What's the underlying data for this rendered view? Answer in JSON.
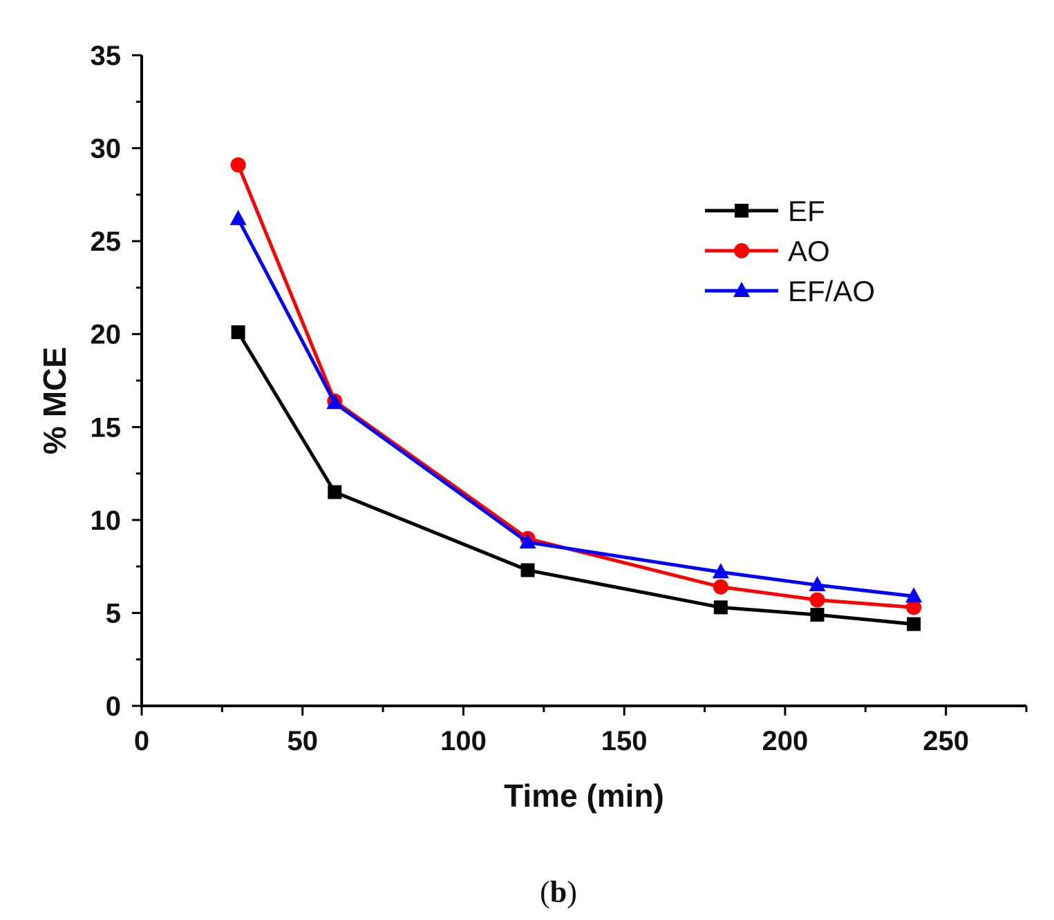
{
  "chart_data": {
    "type": "line",
    "title": "",
    "xlabel": "Time (min)",
    "ylabel": "% MCE",
    "xlim": [
      0,
      275
    ],
    "ylim": [
      0,
      35
    ],
    "x_ticks": [
      0,
      50,
      100,
      150,
      200,
      250
    ],
    "y_ticks": [
      0,
      5,
      10,
      15,
      20,
      25,
      30,
      35
    ],
    "x": [
      30,
      60,
      120,
      180,
      210,
      240
    ],
    "series": [
      {
        "name": "EF",
        "color": "#000000",
        "marker": "square",
        "values": [
          20.1,
          11.5,
          7.3,
          5.3,
          4.9,
          4.4
        ]
      },
      {
        "name": "AO",
        "color": "#ff0000",
        "marker": "circle",
        "values": [
          29.1,
          16.4,
          9.0,
          6.4,
          5.7,
          5.3
        ]
      },
      {
        "name": "EF/AO",
        "color": "#0000ff",
        "marker": "triangle",
        "values": [
          26.2,
          16.3,
          8.8,
          7.2,
          6.5,
          5.9
        ]
      }
    ],
    "legend_position": "top-right",
    "grid": false
  },
  "panel_label": {
    "open": "(",
    "letter": "b",
    "close": ")"
  }
}
